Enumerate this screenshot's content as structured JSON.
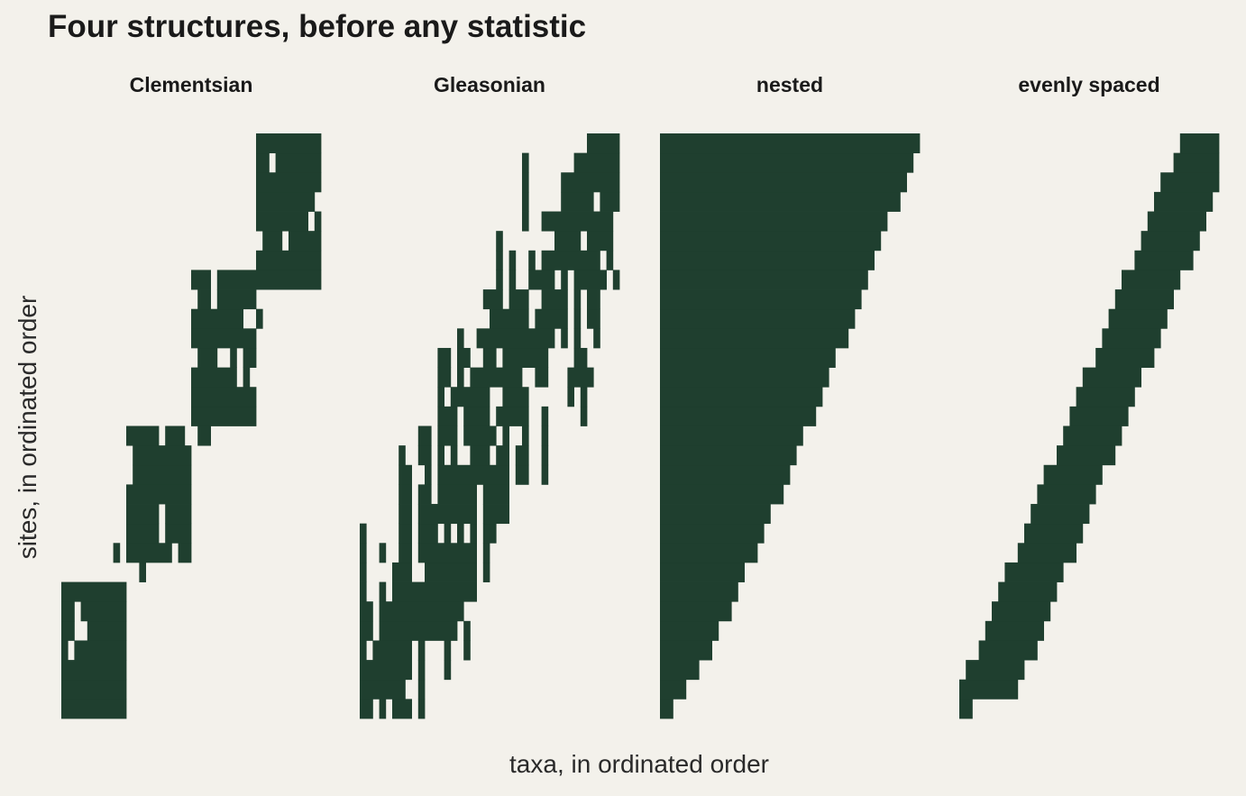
{
  "title": "Four structures, before any statistic",
  "chart_data": {
    "type": "heatmap",
    "title": "Four structures, before any statistic",
    "xlabel": "taxa, in ordinated order",
    "ylabel": "sites, in ordinated order",
    "cell_color": "#1f3f2f",
    "background_color": "#f3f1eb",
    "n_taxa": 40,
    "n_sites": 30,
    "panels": [
      {
        "name": "Clementsian",
        "kind": "clementsian",
        "communities": [
          {
            "taxa": [
              0,
              10
            ],
            "sites": [
              0,
              7
            ]
          },
          {
            "taxa": [
              10,
              20
            ],
            "sites": [
              8,
              15
            ]
          },
          {
            "taxa": [
              20,
              30
            ],
            "sites": [
              15,
              23
            ]
          },
          {
            "taxa": [
              30,
              40
            ],
            "sites": [
              22,
              30
            ]
          }
        ]
      },
      {
        "name": "Gleasonian",
        "kind": "gleasonian"
      },
      {
        "name": "nested",
        "kind": "nested",
        "range_top": 40,
        "range_bottom": 2
      },
      {
        "name": "evenly spaced",
        "kind": "even",
        "band_width": 9,
        "slope": 1.2
      }
    ]
  }
}
